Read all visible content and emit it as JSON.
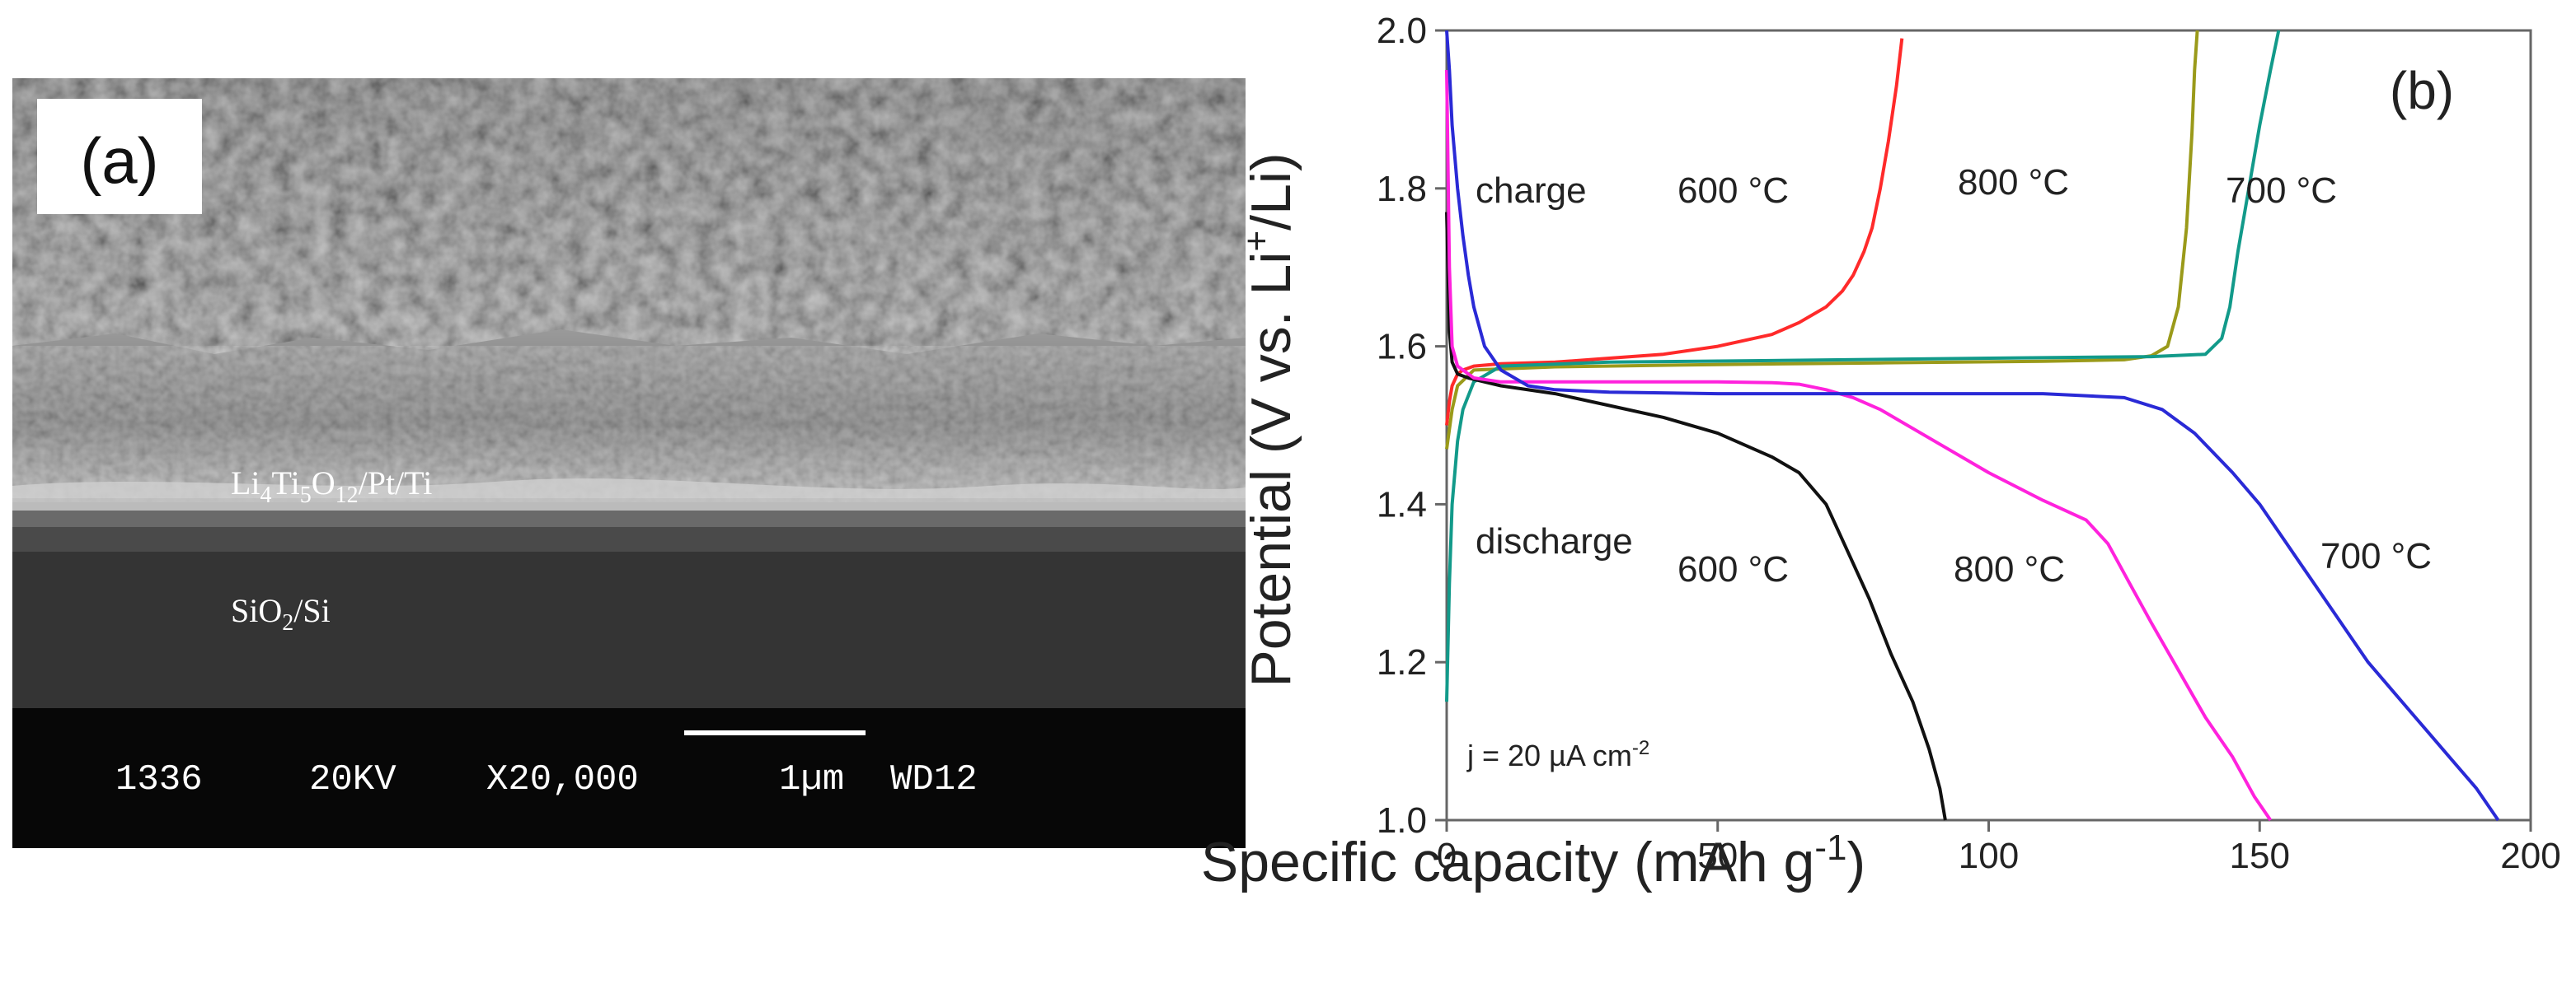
{
  "panel_a": {
    "label": "(a)",
    "layer_label": {
      "p1": "Li",
      "s1": "4",
      "p2": "Ti",
      "s2": "5",
      "p3": "O",
      "s3": "12",
      "p4": "/Pt/Ti"
    },
    "substrate_label": {
      "p1": "SiO",
      "s1": "2",
      "p2": "/Si"
    },
    "info_bar": {
      "id": "1336",
      "voltage": "20KV",
      "magnification": "X20,000",
      "scale": "1µm",
      "wd": "WD12"
    }
  },
  "panel_b": {
    "label": "(b)"
  },
  "chart_data": {
    "type": "line",
    "title": "",
    "xlabel": "Specific capacity (mAh g",
    "xlabel_sup": "-1",
    "xlabel_end": ")",
    "ylabel": {
      "before": "Potential (V vs. Li",
      "sup": "+",
      "after": "/Li)"
    },
    "xlim": [
      0,
      200
    ],
    "ylim": [
      1.0,
      2.0
    ],
    "xticks": [
      0,
      50,
      100,
      150,
      200
    ],
    "xtick_labels": [
      "0",
      "50",
      "100",
      "150",
      "200"
    ],
    "yticks": [
      1.0,
      1.2,
      1.4,
      1.6,
      1.8,
      2.0
    ],
    "ytick_labels": [
      "1.0",
      "1.2",
      "1.4",
      "1.6",
      "1.8",
      "2.0"
    ],
    "annotations": {
      "charge": "charge",
      "discharge": "discharge",
      "c600": "600 °C",
      "c800": "800 °C",
      "c700": "700 °C",
      "d600": "600 °C",
      "d800": "800 °C",
      "d700": "700 °C",
      "current_pre": "j = 20 µA cm",
      "current_sup": "-2"
    },
    "series": [
      {
        "name": "600 °C charge",
        "color": "#ff2a2a",
        "x": [
          0,
          0.5,
          1,
          2,
          3,
          5,
          10,
          20,
          30,
          40,
          50,
          60,
          65,
          70,
          73,
          75,
          77,
          78.5,
          80,
          81.5,
          83,
          84
        ],
        "y": [
          1.5,
          1.53,
          1.55,
          1.565,
          1.57,
          1.575,
          1.578,
          1.58,
          1.585,
          1.59,
          1.6,
          1.615,
          1.63,
          1.65,
          1.67,
          1.69,
          1.72,
          1.75,
          1.8,
          1.86,
          1.93,
          1.99
        ]
      },
      {
        "name": "800 °C charge",
        "color": "#9a9a1a",
        "x": [
          0,
          1,
          2,
          5,
          20,
          50,
          80,
          110,
          125,
          130,
          133,
          135,
          136.5,
          137.5,
          138,
          138.5
        ],
        "y": [
          1.47,
          1.52,
          1.55,
          1.57,
          1.574,
          1.577,
          1.579,
          1.581,
          1.583,
          1.588,
          1.6,
          1.65,
          1.75,
          1.87,
          1.95,
          2.0
        ]
      },
      {
        "name": "700 °C charge",
        "color": "#129a8a",
        "x": [
          0,
          0.5,
          1,
          2,
          3,
          5,
          10,
          30,
          60,
          100,
          130,
          140,
          143,
          144.5,
          146,
          148,
          150,
          152,
          153.5
        ],
        "y": [
          1.15,
          1.3,
          1.4,
          1.48,
          1.52,
          1.555,
          1.575,
          1.58,
          1.582,
          1.585,
          1.587,
          1.59,
          1.61,
          1.65,
          1.72,
          1.8,
          1.88,
          1.95,
          2.0
        ]
      },
      {
        "name": "600 °C discharge",
        "color": "#111111",
        "x": [
          0,
          0.5,
          1,
          2,
          4,
          7,
          10,
          20,
          30,
          40,
          50,
          60,
          65,
          70,
          74,
          78,
          82,
          86,
          89,
          91,
          92
        ],
        "y": [
          1.77,
          1.62,
          1.58,
          1.565,
          1.56,
          1.555,
          1.55,
          1.54,
          1.525,
          1.51,
          1.49,
          1.46,
          1.44,
          1.4,
          1.34,
          1.28,
          1.21,
          1.15,
          1.09,
          1.04,
          1.0
        ]
      },
      {
        "name": "800 °C discharge",
        "color": "#ff22dd",
        "x": [
          0,
          0.5,
          1,
          2,
          5,
          10,
          30,
          50,
          60,
          65,
          70,
          75,
          80,
          90,
          100,
          110,
          118,
          122,
          126,
          130,
          135,
          140,
          145,
          149,
          152
        ],
        "y": [
          1.95,
          1.7,
          1.6,
          1.575,
          1.56,
          1.555,
          1.555,
          1.555,
          1.554,
          1.552,
          1.545,
          1.535,
          1.52,
          1.48,
          1.44,
          1.405,
          1.38,
          1.35,
          1.3,
          1.25,
          1.19,
          1.13,
          1.08,
          1.03,
          1.0
        ]
      },
      {
        "name": "700 °C discharge",
        "color": "#2a2ad6",
        "x": [
          0,
          0.5,
          1,
          2,
          3,
          4,
          5,
          7,
          10,
          15,
          20,
          30,
          50,
          80,
          110,
          125,
          132,
          138,
          145,
          150,
          155,
          160,
          165,
          170,
          175,
          180,
          185,
          190,
          194
        ],
        "y": [
          2.0,
          1.95,
          1.88,
          1.8,
          1.74,
          1.69,
          1.65,
          1.6,
          1.57,
          1.55,
          1.545,
          1.542,
          1.54,
          1.54,
          1.54,
          1.535,
          1.52,
          1.49,
          1.44,
          1.4,
          1.35,
          1.3,
          1.25,
          1.2,
          1.16,
          1.12,
          1.08,
          1.04,
          1.0
        ]
      }
    ]
  }
}
